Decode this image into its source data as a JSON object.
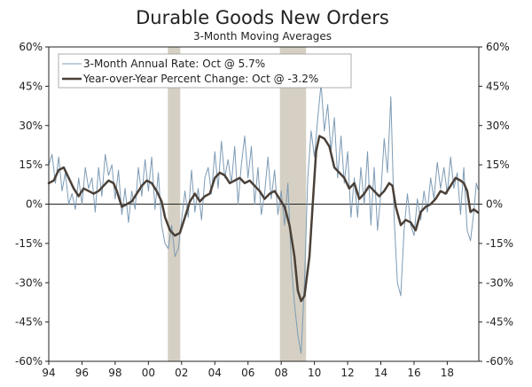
{
  "chart_data": {
    "type": "line",
    "title": "Durable Goods New Orders",
    "subtitle": "3-Month Moving Averages",
    "xlabel": "",
    "ylabel": "",
    "xlim": [
      1994,
      2019.9
    ],
    "ylim": [
      -60,
      60
    ],
    "x_ticks": [
      {
        "value": 1994,
        "label": "94"
      },
      {
        "value": 1996,
        "label": "96"
      },
      {
        "value": 1998,
        "label": "98"
      },
      {
        "value": 2000,
        "label": "00"
      },
      {
        "value": 2002,
        "label": "02"
      },
      {
        "value": 2004,
        "label": "04"
      },
      {
        "value": 2006,
        "label": "06"
      },
      {
        "value": 2008,
        "label": "08"
      },
      {
        "value": 2010,
        "label": "10"
      },
      {
        "value": 2012,
        "label": "12"
      },
      {
        "value": 2014,
        "label": "14"
      },
      {
        "value": 2016,
        "label": "16"
      },
      {
        "value": 2018,
        "label": "18"
      }
    ],
    "y_ticks_left": [
      {
        "value": 60,
        "label": "60%"
      },
      {
        "value": 45,
        "label": "45%"
      },
      {
        "value": 30,
        "label": "30%"
      },
      {
        "value": 15,
        "label": "15%"
      },
      {
        "value": 0,
        "label": "0%"
      },
      {
        "value": -15,
        "label": "-15%"
      },
      {
        "value": -30,
        "label": "-30%"
      },
      {
        "value": -45,
        "label": "-45%"
      },
      {
        "value": -60,
        "label": "-60%"
      }
    ],
    "y_ticks_right": [
      {
        "value": 60,
        "label": "60%"
      },
      {
        "value": 45,
        "label": "45%"
      },
      {
        "value": 30,
        "label": "30%"
      },
      {
        "value": 15,
        "label": "15%"
      },
      {
        "value": 0,
        "label": "0%"
      },
      {
        "value": -15,
        "label": "-15%"
      },
      {
        "value": -30,
        "label": "-30%"
      },
      {
        "value": -45,
        "label": "-45%"
      },
      {
        "value": -60,
        "label": "-60%"
      }
    ],
    "recessions": [
      {
        "start": 2001.17,
        "end": 2001.92
      },
      {
        "start": 2007.92,
        "end": 2009.5
      }
    ],
    "recession_color": "#d5d0c3",
    "legend_position": "top-left",
    "series": [
      {
        "name": "3-Month Annual Rate: Oct @ 5.7%",
        "color": "#7d9bb5",
        "points": [
          [
            1994.0,
            15
          ],
          [
            1994.2,
            19
          ],
          [
            1994.4,
            8
          ],
          [
            1994.6,
            18
          ],
          [
            1994.8,
            5
          ],
          [
            1995.0,
            12
          ],
          [
            1995.2,
            0
          ],
          [
            1995.4,
            4
          ],
          [
            1995.6,
            -2
          ],
          [
            1995.8,
            10
          ],
          [
            1996.0,
            0
          ],
          [
            1996.2,
            14
          ],
          [
            1996.4,
            6
          ],
          [
            1996.6,
            10
          ],
          [
            1996.8,
            -3
          ],
          [
            1997.0,
            14
          ],
          [
            1997.2,
            3
          ],
          [
            1997.4,
            19
          ],
          [
            1997.6,
            11
          ],
          [
            1997.8,
            15
          ],
          [
            1998.0,
            2
          ],
          [
            1998.2,
            13
          ],
          [
            1998.4,
            -4
          ],
          [
            1998.6,
            6
          ],
          [
            1998.8,
            -7
          ],
          [
            1999.0,
            5
          ],
          [
            1999.2,
            -2
          ],
          [
            1999.4,
            14
          ],
          [
            1999.6,
            3
          ],
          [
            1999.8,
            17
          ],
          [
            2000.0,
            5
          ],
          [
            2000.2,
            18
          ],
          [
            2000.4,
            -2
          ],
          [
            2000.6,
            12
          ],
          [
            2000.8,
            -8
          ],
          [
            2001.0,
            -15
          ],
          [
            2001.2,
            -17
          ],
          [
            2001.4,
            -8
          ],
          [
            2001.6,
            -20
          ],
          [
            2001.8,
            -17
          ],
          [
            2002.0,
            -6
          ],
          [
            2002.2,
            5
          ],
          [
            2002.4,
            -5
          ],
          [
            2002.6,
            13
          ],
          [
            2002.8,
            -3
          ],
          [
            2003.0,
            6
          ],
          [
            2003.2,
            -6
          ],
          [
            2003.4,
            10
          ],
          [
            2003.6,
            14
          ],
          [
            2003.8,
            4
          ],
          [
            2004.0,
            20
          ],
          [
            2004.2,
            6
          ],
          [
            2004.4,
            24
          ],
          [
            2004.6,
            10
          ],
          [
            2004.8,
            17
          ],
          [
            2005.0,
            8
          ],
          [
            2005.2,
            22
          ],
          [
            2005.4,
            0
          ],
          [
            2005.6,
            15
          ],
          [
            2005.8,
            26
          ],
          [
            2006.0,
            10
          ],
          [
            2006.2,
            22
          ],
          [
            2006.4,
            0
          ],
          [
            2006.6,
            14
          ],
          [
            2006.8,
            -4
          ],
          [
            2007.0,
            4
          ],
          [
            2007.2,
            18
          ],
          [
            2007.4,
            2
          ],
          [
            2007.6,
            13
          ],
          [
            2007.8,
            -4
          ],
          [
            2008.0,
            5
          ],
          [
            2008.2,
            -8
          ],
          [
            2008.4,
            8
          ],
          [
            2008.6,
            -22
          ],
          [
            2008.8,
            -38
          ],
          [
            2009.0,
            -50
          ],
          [
            2009.2,
            -57
          ],
          [
            2009.4,
            -30
          ],
          [
            2009.6,
            10
          ],
          [
            2009.8,
            28
          ],
          [
            2010.0,
            18
          ],
          [
            2010.2,
            33
          ],
          [
            2010.4,
            46
          ],
          [
            2010.6,
            28
          ],
          [
            2010.8,
            38
          ],
          [
            2011.0,
            20
          ],
          [
            2011.2,
            33
          ],
          [
            2011.4,
            10
          ],
          [
            2011.6,
            26
          ],
          [
            2011.8,
            8
          ],
          [
            2012.0,
            20
          ],
          [
            2012.2,
            -5
          ],
          [
            2012.4,
            10
          ],
          [
            2012.6,
            -5
          ],
          [
            2012.8,
            14
          ],
          [
            2013.0,
            0
          ],
          [
            2013.2,
            20
          ],
          [
            2013.4,
            -8
          ],
          [
            2013.6,
            14
          ],
          [
            2013.8,
            -10
          ],
          [
            2014.0,
            4
          ],
          [
            2014.2,
            25
          ],
          [
            2014.4,
            12
          ],
          [
            2014.6,
            41
          ],
          [
            2014.8,
            -5
          ],
          [
            2015.0,
            -30
          ],
          [
            2015.2,
            -35
          ],
          [
            2015.4,
            -10
          ],
          [
            2015.6,
            4
          ],
          [
            2015.8,
            -8
          ],
          [
            2016.0,
            -12
          ],
          [
            2016.2,
            2
          ],
          [
            2016.4,
            -6
          ],
          [
            2016.6,
            5
          ],
          [
            2016.8,
            -3
          ],
          [
            2017.0,
            10
          ],
          [
            2017.2,
            2
          ],
          [
            2017.4,
            16
          ],
          [
            2017.6,
            6
          ],
          [
            2017.8,
            14
          ],
          [
            2018.0,
            4
          ],
          [
            2018.2,
            18
          ],
          [
            2018.4,
            6
          ],
          [
            2018.6,
            12
          ],
          [
            2018.8,
            -4
          ],
          [
            2019.0,
            14
          ],
          [
            2019.2,
            -10
          ],
          [
            2019.4,
            -14
          ],
          [
            2019.6,
            -3
          ],
          [
            2019.75,
            8
          ],
          [
            2019.85,
            5.7
          ]
        ]
      },
      {
        "name": "Year-over-Year Percent Change: Oct @ -3.2%",
        "color": "#4a4038",
        "points": [
          [
            1994.0,
            8
          ],
          [
            1994.3,
            9
          ],
          [
            1994.6,
            13
          ],
          [
            1994.9,
            14
          ],
          [
            1995.2,
            10
          ],
          [
            1995.5,
            6
          ],
          [
            1995.8,
            3
          ],
          [
            1996.1,
            6
          ],
          [
            1996.4,
            5
          ],
          [
            1996.7,
            4
          ],
          [
            1997.0,
            5
          ],
          [
            1997.3,
            7
          ],
          [
            1997.6,
            9
          ],
          [
            1997.9,
            8
          ],
          [
            1998.1,
            5
          ],
          [
            1998.4,
            -1
          ],
          [
            1998.7,
            0
          ],
          [
            1999.0,
            1
          ],
          [
            1999.3,
            4
          ],
          [
            1999.6,
            7
          ],
          [
            1999.9,
            9
          ],
          [
            2000.2,
            8
          ],
          [
            2000.5,
            5
          ],
          [
            2000.8,
            1
          ],
          [
            2001.0,
            -5
          ],
          [
            2001.3,
            -10
          ],
          [
            2001.6,
            -12
          ],
          [
            2001.9,
            -11
          ],
          [
            2002.2,
            -5
          ],
          [
            2002.5,
            1
          ],
          [
            2002.8,
            4
          ],
          [
            2003.1,
            1
          ],
          [
            2003.4,
            3
          ],
          [
            2003.7,
            4
          ],
          [
            2004.0,
            10
          ],
          [
            2004.3,
            12
          ],
          [
            2004.6,
            11
          ],
          [
            2004.9,
            8
          ],
          [
            2005.2,
            9
          ],
          [
            2005.5,
            10
          ],
          [
            2005.8,
            8
          ],
          [
            2006.1,
            9
          ],
          [
            2006.4,
            7
          ],
          [
            2006.7,
            5
          ],
          [
            2007.0,
            2
          ],
          [
            2007.3,
            4
          ],
          [
            2007.6,
            5
          ],
          [
            2007.9,
            2
          ],
          [
            2008.2,
            -1
          ],
          [
            2008.5,
            -8
          ],
          [
            2008.8,
            -20
          ],
          [
            2009.0,
            -33
          ],
          [
            2009.2,
            -37
          ],
          [
            2009.4,
            -35
          ],
          [
            2009.7,
            -20
          ],
          [
            2009.9,
            0
          ],
          [
            2010.1,
            20
          ],
          [
            2010.3,
            26
          ],
          [
            2010.6,
            25
          ],
          [
            2010.9,
            22
          ],
          [
            2011.2,
            14
          ],
          [
            2011.5,
            12
          ],
          [
            2011.8,
            10
          ],
          [
            2012.1,
            6
          ],
          [
            2012.4,
            8
          ],
          [
            2012.7,
            2
          ],
          [
            2013.0,
            4
          ],
          [
            2013.3,
            7
          ],
          [
            2013.6,
            5
          ],
          [
            2013.9,
            3
          ],
          [
            2014.2,
            5
          ],
          [
            2014.5,
            8
          ],
          [
            2014.7,
            7
          ],
          [
            2014.9,
            -1
          ],
          [
            2015.2,
            -8
          ],
          [
            2015.5,
            -6
          ],
          [
            2015.8,
            -7
          ],
          [
            2016.1,
            -10
          ],
          [
            2016.4,
            -3
          ],
          [
            2016.7,
            -1
          ],
          [
            2017.0,
            0
          ],
          [
            2017.3,
            2
          ],
          [
            2017.6,
            5
          ],
          [
            2017.9,
            4
          ],
          [
            2018.2,
            7
          ],
          [
            2018.5,
            10
          ],
          [
            2018.8,
            9
          ],
          [
            2019.0,
            8
          ],
          [
            2019.2,
            5
          ],
          [
            2019.4,
            -3
          ],
          [
            2019.6,
            -2
          ],
          [
            2019.85,
            -3.2
          ]
        ]
      }
    ]
  }
}
